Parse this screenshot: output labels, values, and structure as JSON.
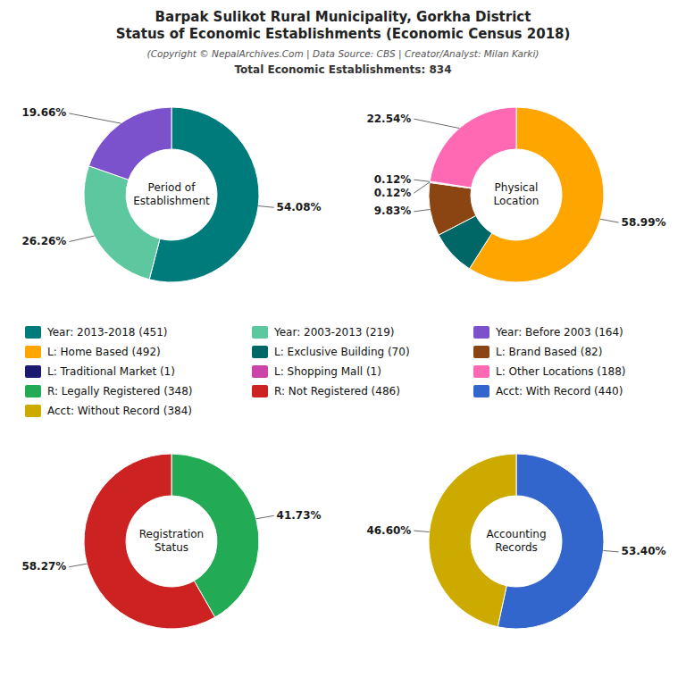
{
  "title": "Barpak Sulikot Rural Municipality, Gorkha District\nStatus of Economic Establishments (Economic Census 2018)",
  "subtitle": "(Copyright © NepalArchives.Com | Data Source: CBS | Creator/Analyst: Milan Karki)",
  "annotations": [
    "Total Economic Establishments: 834"
  ],
  "chart_data": [
    {
      "type": "donut",
      "title": "Period of\nEstablishment",
      "categories": [
        "Year: 2013-2018 (451)",
        "Year: 2003-2013 (219)",
        "Year: Before 2003 (164)"
      ],
      "values": [
        54.08,
        26.26,
        19.66
      ],
      "value_labels": [
        "54.08%",
        "26.26%",
        "19.66%"
      ],
      "colors": [
        "#007B7B",
        "#5DC8A0",
        "#7B52CC"
      ],
      "data_labels": true
    },
    {
      "type": "donut",
      "title": "Physical\nLocation",
      "categories": [
        "L: Home Based (492)",
        "L: Exclusive Building (70)",
        "L: Brand Based (82)",
        "L: Traditional Market (1)",
        "L: Shopping Mall (1)",
        "L: Other Locations (188)"
      ],
      "values": [
        58.99,
        8.4,
        9.83,
        0.12,
        0.12,
        22.54
      ],
      "value_labels": [
        "58.99%",
        null,
        "9.83%",
        "0.12%",
        "0.12%",
        "22.54%"
      ],
      "colors": [
        "#FFA500",
        "#006666",
        "#8B4513",
        "#1A1A6E",
        "#CC44AA",
        "#FF69B4"
      ],
      "data_labels": true
    },
    {
      "type": "donut",
      "title": "Registration\nStatus",
      "categories": [
        "R: Legally Registered (348)",
        "R: Not Registered (486)"
      ],
      "values": [
        41.73,
        58.27
      ],
      "value_labels": [
        "41.73%",
        "58.27%"
      ],
      "colors": [
        "#22AA55",
        "#CC2222"
      ],
      "data_labels": true
    },
    {
      "type": "donut",
      "title": "Accounting\nRecords",
      "categories": [
        "Acct: With Record (440)",
        "Acct: Without Record (384)"
      ],
      "values": [
        53.4,
        46.6
      ],
      "value_labels": [
        "53.40%",
        "46.60%"
      ],
      "colors": [
        "#3366CC",
        "#CCAA00"
      ],
      "data_labels": true
    }
  ]
}
